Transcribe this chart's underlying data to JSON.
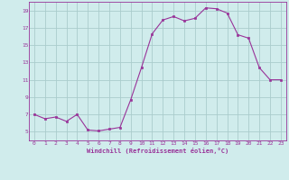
{
  "x": [
    0,
    1,
    2,
    3,
    4,
    5,
    6,
    7,
    8,
    9,
    10,
    11,
    12,
    13,
    14,
    15,
    16,
    17,
    18,
    19,
    20,
    21,
    22,
    23
  ],
  "y": [
    7.0,
    6.5,
    6.7,
    6.2,
    7.0,
    5.2,
    5.1,
    5.3,
    5.5,
    8.7,
    12.4,
    16.3,
    17.9,
    18.3,
    17.8,
    18.1,
    19.3,
    19.2,
    18.7,
    16.2,
    15.8,
    12.4,
    11.0,
    11.0
  ],
  "line_color": "#993399",
  "marker_color": "#993399",
  "bg_color": "#d0ecec",
  "grid_color": "#aacccc",
  "axis_color": "#993399",
  "xlabel": "Windchill (Refroidissement éolien,°C)",
  "xlim": [
    -0.5,
    23.5
  ],
  "ylim": [
    4.0,
    20.0
  ],
  "yticks": [
    5,
    7,
    9,
    11,
    13,
    15,
    17,
    19
  ],
  "xticks": [
    0,
    1,
    2,
    3,
    4,
    5,
    6,
    7,
    8,
    9,
    10,
    11,
    12,
    13,
    14,
    15,
    16,
    17,
    18,
    19,
    20,
    21,
    22,
    23
  ]
}
